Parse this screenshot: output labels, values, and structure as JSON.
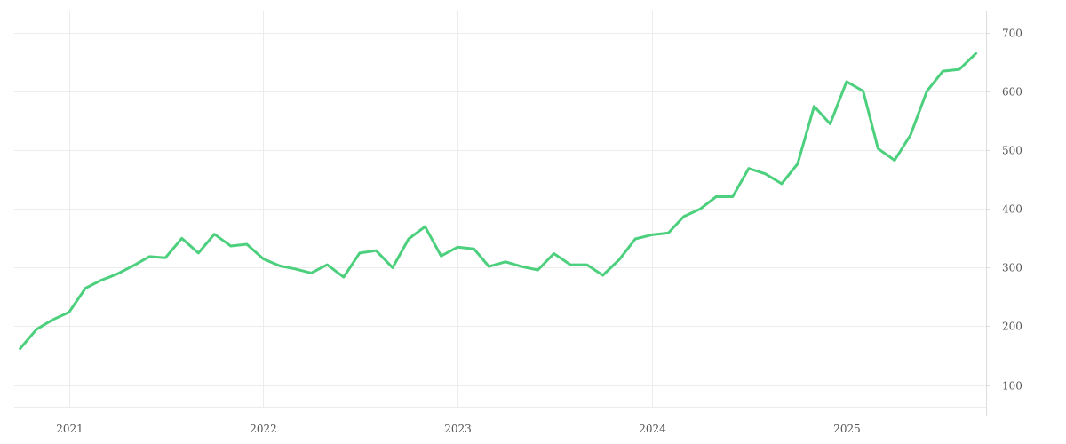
{
  "chart_data": {
    "type": "line",
    "title": "",
    "xlabel": "",
    "ylabel": "",
    "x_ticks": [
      "2021",
      "2022",
      "2023",
      "2024",
      "2025"
    ],
    "y_ticks": [
      100,
      200,
      300,
      400,
      500,
      600,
      700
    ],
    "ylim": [
      63,
      738
    ],
    "xlim": [
      "2020-09-20",
      "2025-09-20"
    ],
    "y_axis_position": "right",
    "grid": true,
    "legend": "none",
    "series": [
      {
        "color": "#4cd07d",
        "points": [
          [
            "2020-10",
            162
          ],
          [
            "2020-11",
            195
          ],
          [
            "2020-12",
            211
          ],
          [
            "2021-01",
            224
          ],
          [
            "2021-02",
            265
          ],
          [
            "2021-03",
            278
          ],
          [
            "2021-04",
            289
          ],
          [
            "2021-05",
            303
          ],
          [
            "2021-06",
            319
          ],
          [
            "2021-07",
            317
          ],
          [
            "2021-08",
            350
          ],
          [
            "2021-09",
            325
          ],
          [
            "2021-10",
            357
          ],
          [
            "2021-11",
            337
          ],
          [
            "2021-12",
            340
          ],
          [
            "2022-01",
            315
          ],
          [
            "2022-02",
            303
          ],
          [
            "2022-03",
            298
          ],
          [
            "2022-04",
            291
          ],
          [
            "2022-05",
            305
          ],
          [
            "2022-06",
            284
          ],
          [
            "2022-07",
            325
          ],
          [
            "2022-08",
            329
          ],
          [
            "2022-09",
            300
          ],
          [
            "2022-10",
            349
          ],
          [
            "2022-11",
            370
          ],
          [
            "2022-12",
            320
          ],
          [
            "2023-01",
            335
          ],
          [
            "2023-02",
            332
          ],
          [
            "2023-03",
            302
          ],
          [
            "2023-04",
            310
          ],
          [
            "2023-05",
            302
          ],
          [
            "2023-06",
            296
          ],
          [
            "2023-07",
            324
          ],
          [
            "2023-08",
            305
          ],
          [
            "2023-09",
            305
          ],
          [
            "2023-10",
            287
          ],
          [
            "2023-11",
            314
          ],
          [
            "2023-12",
            349
          ],
          [
            "2024-01",
            356
          ],
          [
            "2024-02",
            359
          ],
          [
            "2024-03",
            387
          ],
          [
            "2024-04",
            400
          ],
          [
            "2024-05",
            421
          ],
          [
            "2024-06",
            421
          ],
          [
            "2024-07",
            469
          ],
          [
            "2024-08",
            460
          ],
          [
            "2024-09",
            443
          ],
          [
            "2024-10",
            477
          ],
          [
            "2024-11",
            575
          ],
          [
            "2024-12",
            545
          ],
          [
            "2025-01",
            617
          ],
          [
            "2025-02",
            601
          ],
          [
            "2025-03",
            503
          ],
          [
            "2025-04",
            483
          ],
          [
            "2025-05",
            526
          ],
          [
            "2025-06",
            601
          ],
          [
            "2025-07",
            635
          ],
          [
            "2025-08",
            638
          ],
          [
            "2025-09",
            665
          ]
        ]
      }
    ]
  }
}
